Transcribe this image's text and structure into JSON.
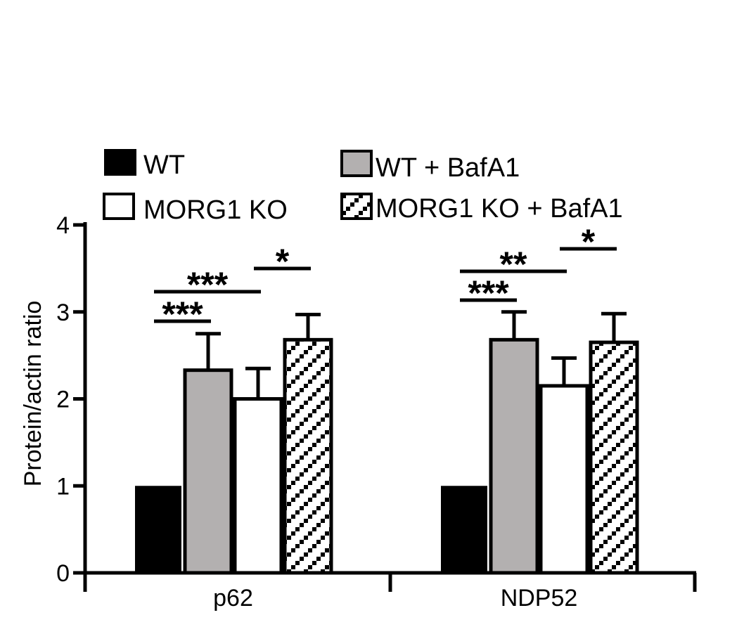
{
  "chart_data": {
    "type": "bar",
    "title": "",
    "xlabel": "",
    "ylabel": "Protein/actin ratio",
    "ylim": [
      0,
      4
    ],
    "yticks": [
      "0",
      "1",
      "2",
      "3",
      "4"
    ],
    "categories": [
      "p62",
      "NDP52"
    ],
    "series": [
      {
        "name": "WT",
        "fill": "solid",
        "color": "#000000",
        "values": [
          1.0,
          1.0
        ],
        "errors": [
          0,
          0
        ]
      },
      {
        "name": "WT + BafA1",
        "fill": "solid",
        "color": "#b3b0b0",
        "values": [
          2.33,
          2.68
        ],
        "errors": [
          0.42,
          0.32
        ]
      },
      {
        "name": "MORG1 KO",
        "fill": "solid",
        "color": "#ffffff",
        "values": [
          2.0,
          2.15
        ],
        "errors": [
          0.35,
          0.32
        ]
      },
      {
        "name": "MORG1 KO + BafA1",
        "fill": "hatch",
        "color": "#ffffff",
        "values": [
          2.68,
          2.65
        ],
        "errors": [
          0.29,
          0.33
        ]
      }
    ],
    "significance": [
      {
        "category": 0,
        "from": 0,
        "to": 1,
        "label": "***"
      },
      {
        "category": 0,
        "from": 0,
        "to": 2,
        "label": "***"
      },
      {
        "category": 0,
        "from": 2,
        "to": 3,
        "label": "*"
      },
      {
        "category": 1,
        "from": 0,
        "to": 1,
        "label": "***"
      },
      {
        "category": 1,
        "from": 0,
        "to": 2,
        "label": "**"
      },
      {
        "category": 1,
        "from": 2,
        "to": 3,
        "label": "*"
      }
    ]
  }
}
